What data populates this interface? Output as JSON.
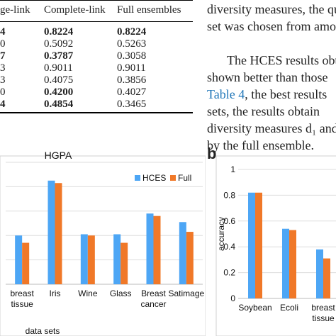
{
  "table": {
    "headers": [
      "ge-link",
      "Complete-link",
      "Full ensembles"
    ],
    "rows": [
      {
        "single": "4",
        "complete": "0.8224",
        "full": "0.8224",
        "single_bold": true,
        "complete_bold": true,
        "full_bold": true
      },
      {
        "single": "0",
        "complete": "0.5092",
        "full": "0.5263",
        "single_bold": false,
        "complete_bold": false,
        "full_bold": false
      },
      {
        "single": "7",
        "complete": "0.3787",
        "full": "0.3058",
        "single_bold": true,
        "complete_bold": true,
        "full_bold": false
      },
      {
        "single": "3",
        "complete": "0.9011",
        "full": "0.9011",
        "single_bold": false,
        "complete_bold": false,
        "full_bold": false
      },
      {
        "single": "3",
        "complete": "0.4075",
        "full": "0.3856",
        "single_bold": false,
        "complete_bold": false,
        "full_bold": false
      },
      {
        "single": "0",
        "complete": "0.4200",
        "full": "0.4027",
        "single_bold": false,
        "complete_bold": true,
        "full_bold": false
      },
      {
        "single": "4",
        "complete": "0.4854",
        "full": "0.3465",
        "single_bold": true,
        "complete_bold": true,
        "full_bold": false
      }
    ]
  },
  "text_lines": [
    {
      "pre": "diversity measures, the qu",
      "link": "",
      "post": ""
    },
    {
      "pre": "set was chosen from amo",
      "link": "",
      "post": ""
    },
    {
      "pre": "",
      "link": "",
      "post": ""
    },
    {
      "pre": "The HCES results obt",
      "link": "",
      "post": ""
    },
    {
      "pre": "shown better than those",
      "link": "",
      "post": ""
    },
    {
      "pre": "",
      "link": "Table 4",
      "post": ", the best results"
    },
    {
      "pre": "sets, the results obtain",
      "link": "",
      "post": ""
    },
    {
      "pre": "diversity measures d₁ and",
      "link": "",
      "post": ""
    },
    {
      "pre": "by the full ensemble.",
      "link": "",
      "post": ""
    }
  ],
  "colors": {
    "hces": "#4da6f5",
    "full": "#f07828"
  },
  "chart_data": [
    {
      "type": "bar",
      "panel": "",
      "title": "HGPA",
      "xlabel": "data sets",
      "ylabel": "",
      "categories": [
        "breast\ntissue",
        "Iris",
        "Wine",
        "Glass",
        "Breast\ncancer",
        "Satimage"
      ],
      "series": [
        {
          "name": "HCES",
          "values": [
            0.4,
            0.85,
            0.41,
            0.41,
            0.58,
            0.51
          ]
        },
        {
          "name": "Full",
          "values": [
            0.34,
            0.83,
            0.4,
            0.34,
            0.56,
            0.43
          ]
        }
      ],
      "ylim": [
        0,
        1.0
      ],
      "grid": true,
      "legend": "top-right"
    },
    {
      "type": "bar",
      "panel": "b",
      "title": "",
      "xlabel": "",
      "ylabel": "accuracy",
      "categories": [
        "Soybean",
        "Ecoli",
        "breast\ntissue"
      ],
      "yticks": [
        "0",
        "0.2",
        "0.4",
        "0.6",
        "0.8",
        "1"
      ],
      "series": [
        {
          "name": "HCES",
          "values": [
            0.82,
            0.54,
            0.38
          ]
        },
        {
          "name": "Full",
          "values": [
            0.82,
            0.53,
            0.31
          ]
        }
      ],
      "ylim": [
        0,
        1.0
      ],
      "grid": true,
      "legend": ""
    }
  ]
}
